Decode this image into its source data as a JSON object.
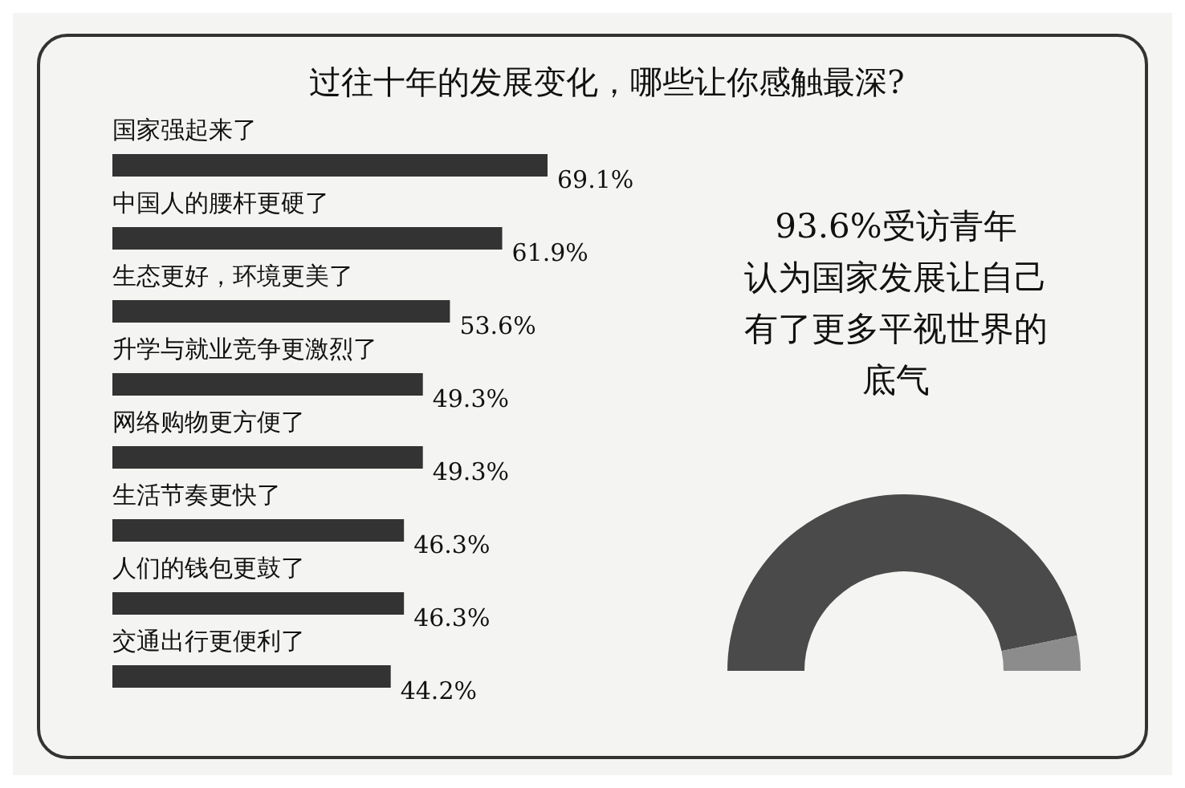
{
  "chart_data": [
    {
      "type": "bar",
      "orientation": "horizontal",
      "relative": false,
      "title": "过往十年的发展变化，哪些让你感触最深?",
      "categories": [
        "国家强起来了",
        "中国人的腰杆更硬了",
        "生态更好，环境更美了",
        "升学与就业竞争更激烈了",
        "网络购物更方便了",
        "生活节奏更快了",
        "人们的钱包更鼓了",
        "交通出行更便利了"
      ],
      "values": [
        69.1,
        61.9,
        53.6,
        49.3,
        49.3,
        46.3,
        46.3,
        44.2
      ],
      "value_labels": [
        "69.1%",
        "61.9%",
        "53.6%",
        "49.3%",
        "49.3%",
        "46.3%",
        "46.3%",
        "44.2%"
      ],
      "color": "#333333"
    },
    {
      "type": "donut",
      "title": "93.6%受访青年认为国家发展让自己有了更多平视世界的底气",
      "categories": [
        null,
        null
      ],
      "values": [
        93.6,
        6.4
      ],
      "colors": [
        "#4a4a4a",
        "#8c8c8c"
      ]
    }
  ]
}
